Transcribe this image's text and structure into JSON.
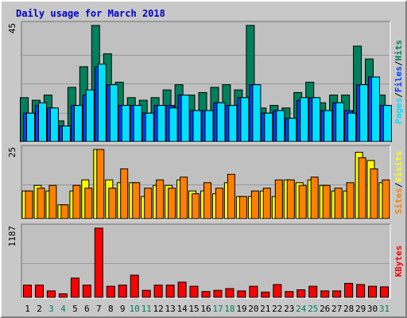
{
  "chart_data": {
    "type": "bar",
    "title": "Daily usage for March 2018",
    "days": [
      "1",
      "2",
      "3",
      "4",
      "5",
      "6",
      "7",
      "8",
      "9",
      "10",
      "11",
      "12",
      "13",
      "14",
      "15",
      "16",
      "17",
      "18",
      "19",
      "20",
      "21",
      "22",
      "23",
      "24",
      "25",
      "26",
      "27",
      "28",
      "29",
      "30",
      "31"
    ],
    "weekend_days": [
      "3",
      "4",
      "10",
      "11",
      "17",
      "18",
      "24",
      "25",
      "31"
    ],
    "colors": {
      "hits": "#00805c",
      "files": "#0040ff",
      "pages": "#00e0ff",
      "visits": "#ffff00",
      "sites": "#ff8000",
      "kbytes": "#ff0000",
      "title": "#0000cc",
      "weekday": "#000000",
      "weekend": "#00805c",
      "plot_bg": "#c0c0c0"
    },
    "panels": [
      {
        "id": "hits-files-pages",
        "ymax": 45,
        "ymax_label": "45",
        "legend": [
          {
            "text": "Pages",
            "color": "#00e0ff"
          },
          {
            "text": "/",
            "color": "#000000"
          },
          {
            "text": "Files",
            "color": "#0040ff"
          },
          {
            "text": "/",
            "color": "#000000"
          },
          {
            "text": "Hits",
            "color": "#00805c"
          }
        ],
        "series": [
          {
            "name": "Hits",
            "key": "hits",
            "values": [
              17,
              16,
              18,
              8,
              21,
              29,
              45,
              34,
              23,
              17,
              16,
              17,
              20,
              22,
              18,
              19,
              21,
              22,
              20,
              45,
              13,
              14,
              13,
              19,
              23,
              15,
              18,
              18,
              37,
              32,
              18
            ]
          },
          {
            "name": "Files",
            "key": "files",
            "values": [
              11,
              14,
              13,
              6,
              14,
              18,
              29,
              22,
              14,
              14,
              11,
              14,
              14,
              18,
              12,
              12,
              15,
              14,
              17,
              22,
              11,
              12,
              9,
              16,
              17,
              12,
              15,
              12,
              22,
              25,
              14
            ]
          },
          {
            "name": "Pages",
            "key": "pages",
            "values": [
              11,
              15,
              13,
              6,
              14,
              20,
              30,
              22,
              14,
              14,
              11,
              14,
              13,
              18,
              12,
              12,
              15,
              14,
              17,
              22,
              11,
              12,
              9,
              17,
              17,
              12,
              15,
              11,
              22,
              25,
              14
            ]
          }
        ]
      },
      {
        "id": "visits-sites",
        "ymax": 25,
        "ymax_label": "25",
        "legend": [
          {
            "text": "Sites",
            "color": "#ff8000"
          },
          {
            "text": "/",
            "color": "#000000"
          },
          {
            "text": "Visits",
            "color": "#ffff00"
          }
        ],
        "series": [
          {
            "name": "Visits",
            "key": "visits",
            "values": [
              10,
              12,
              10,
              5,
              10,
              14,
              25,
              14,
              13,
              13,
              8,
              12,
              12,
              14,
              10,
              10,
              9,
              13,
              8,
              8,
              10,
              8,
              14,
              13,
              14,
              12,
              10,
              10,
              24,
              21,
              13
            ]
          },
          {
            "name": "Sites",
            "key": "sites",
            "values": [
              10,
              11,
              12,
              5,
              12,
              11,
              25,
              11,
              18,
              13,
              11,
              14,
              11,
              15,
              9,
              13,
              11,
              16,
              8,
              10,
              11,
              14,
              14,
              12,
              15,
              12,
              11,
              13,
              22,
              18,
              14
            ]
          }
        ]
      },
      {
        "id": "kbytes",
        "ymax": 1187,
        "ymax_label": "1187",
        "legend": [
          {
            "text": "KBytes",
            "color": "#ff0000"
          }
        ],
        "series": [
          {
            "name": "KBytes",
            "key": "kbytes",
            "values": [
              210,
              210,
              110,
              60,
              330,
              210,
              1187,
              190,
              210,
              380,
              120,
              210,
              210,
              260,
              190,
              100,
              120,
              150,
              110,
              190,
              90,
              220,
              100,
              130,
              190,
              110,
              110,
              240,
              220,
              190,
              180
            ]
          }
        ]
      }
    ]
  }
}
